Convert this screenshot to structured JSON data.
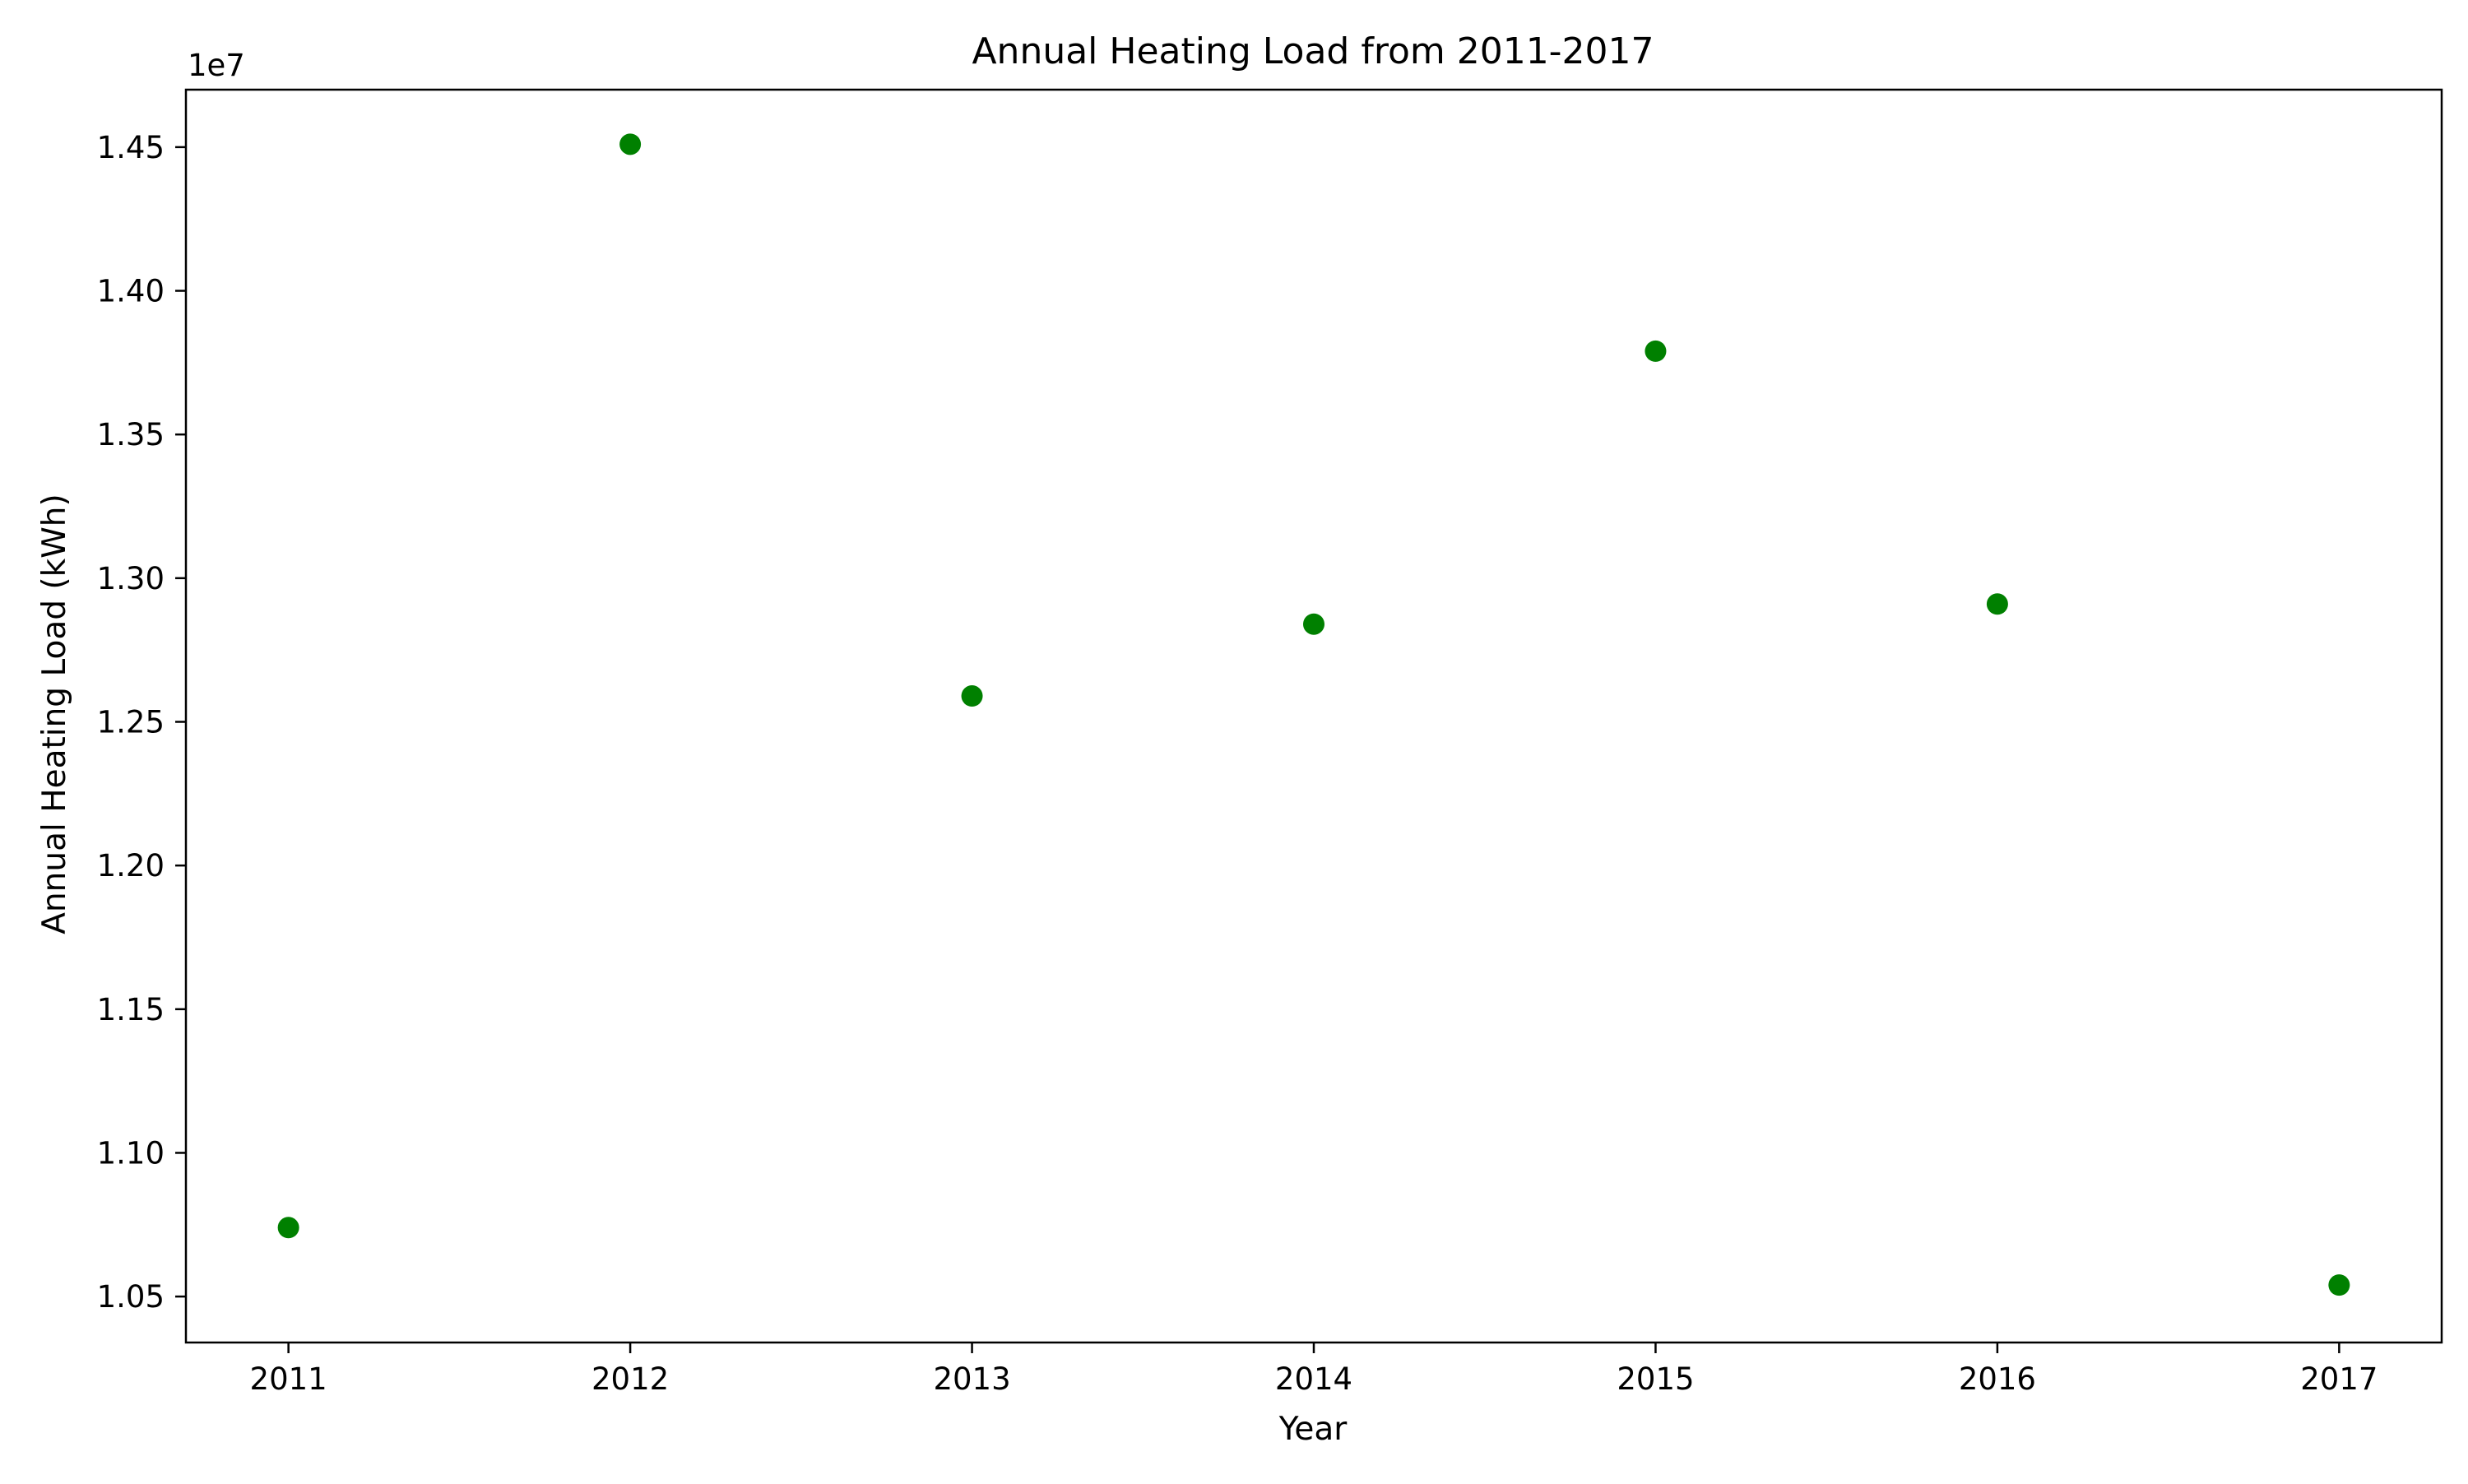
{
  "chart_data": {
    "type": "scatter",
    "title": "Annual Heating Load from 2011-2017",
    "xlabel": "Year",
    "ylabel": "Annual Heating Load (kWh)",
    "y_offset_label": "1e7",
    "x": [
      2011,
      2012,
      2013,
      2014,
      2015,
      2016,
      2017
    ],
    "y": [
      10740000,
      14510000,
      12590000,
      12840000,
      13790000,
      12910000,
      10540000
    ],
    "xlim": [
      2010.7,
      2017.3
    ],
    "ylim": [
      10340000,
      14700000
    ],
    "x_ticks": [
      2011,
      2012,
      2013,
      2014,
      2015,
      2016,
      2017
    ],
    "x_tick_labels": [
      "2011",
      "2012",
      "2013",
      "2014",
      "2015",
      "2016",
      "2017"
    ],
    "y_ticks": [
      10500000,
      11000000,
      11500000,
      12000000,
      12500000,
      13000000,
      13500000,
      14000000,
      14500000
    ],
    "y_tick_labels": [
      "1.05",
      "1.10",
      "1.15",
      "1.20",
      "1.25",
      "1.30",
      "1.35",
      "1.40",
      "1.45"
    ],
    "marker_color": "#008000",
    "grid": false,
    "legend": "none"
  }
}
